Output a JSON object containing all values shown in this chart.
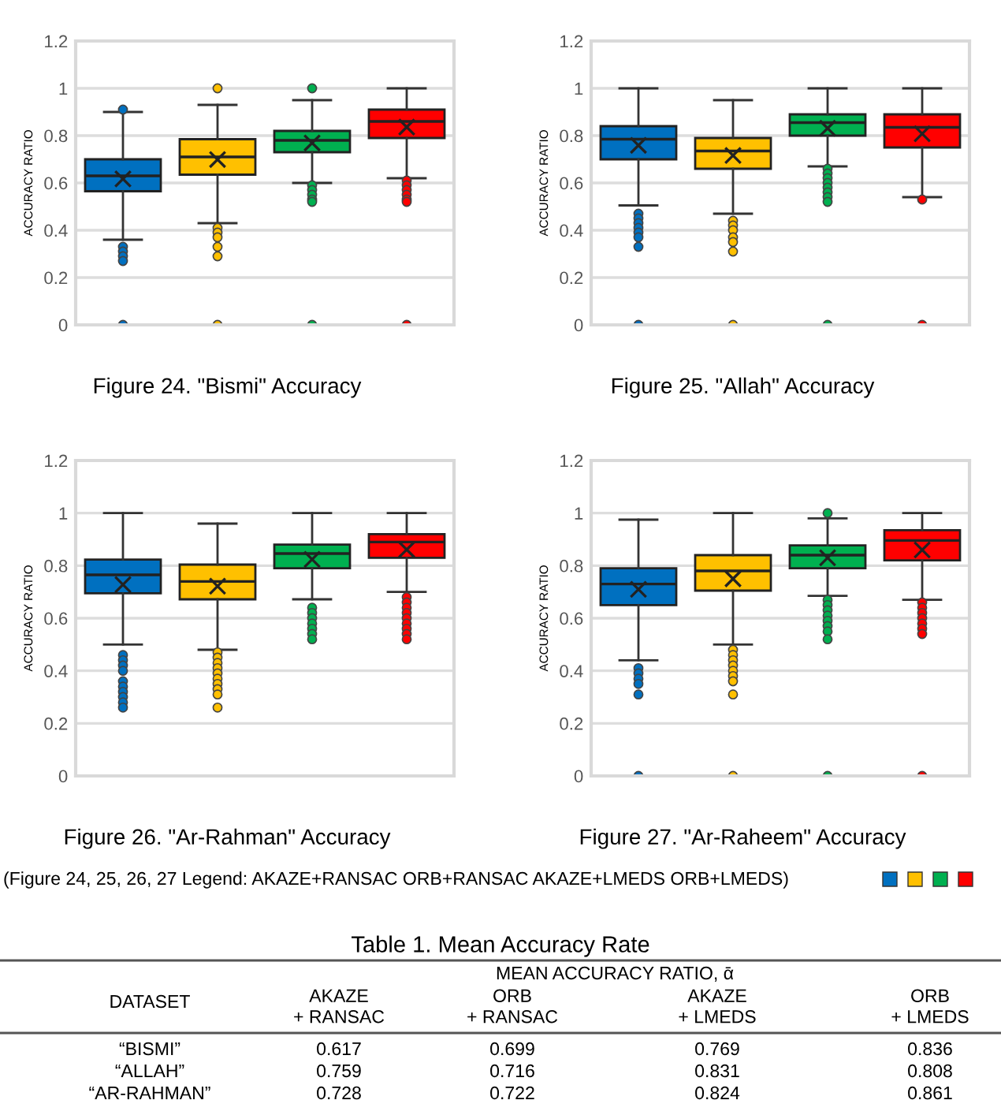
{
  "chart_data": [
    {
      "type": "box",
      "title": "Figure 24. \"Bismi\" Accuracy",
      "ylabel": "ACCURACY RATIO",
      "categories": [
        null,
        null,
        null,
        null
      ],
      "colors": [
        "#0070c0",
        "#ffc000",
        "#00b050",
        "#ff0000"
      ],
      "ylim": [
        0,
        1.2
      ],
      "yticks": [
        0,
        0.2,
        0.4,
        0.6,
        0.8,
        1,
        1.2
      ],
      "grid": "y",
      "tick_labels": "y",
      "boxes": [
        {
          "low": 0.36,
          "q1": 0.565,
          "median": 0.63,
          "q3": 0.7,
          "high": 0.9,
          "mean": 0.617,
          "outliers": [
            0.91,
            0.33,
            0.31,
            0.29,
            0.27,
            0
          ]
        },
        {
          "low": 0.43,
          "q1": 0.635,
          "median": 0.71,
          "q3": 0.785,
          "high": 0.93,
          "mean": 0.699,
          "outliers": [
            1.0,
            0.41,
            0.39,
            0.37,
            0.33,
            0.29,
            0
          ]
        },
        {
          "low": 0.6,
          "q1": 0.73,
          "median": 0.78,
          "q3": 0.82,
          "high": 0.95,
          "mean": 0.769,
          "outliers": [
            1.0,
            0.59,
            0.57,
            0.55,
            0.53,
            0.52,
            0
          ]
        },
        {
          "low": 0.62,
          "q1": 0.79,
          "median": 0.86,
          "q3": 0.91,
          "high": 1.0,
          "mean": 0.836,
          "outliers": [
            0.61,
            0.59,
            0.57,
            0.55,
            0.53,
            0.52,
            0
          ]
        }
      ]
    },
    {
      "type": "box",
      "title": "Figure 25. \"Allah\" Accuracy",
      "ylabel": "ACCURACY RATIO",
      "categories": [
        null,
        null,
        null,
        null
      ],
      "colors": [
        "#0070c0",
        "#ffc000",
        "#00b050",
        "#ff0000"
      ],
      "ylim": [
        0,
        1.2
      ],
      "yticks": [
        0,
        0.2,
        0.4,
        0.6,
        0.8,
        1,
        1.2
      ],
      "grid": "y",
      "tick_labels": "y",
      "boxes": [
        {
          "low": 0.505,
          "q1": 0.7,
          "median": 0.785,
          "q3": 0.84,
          "high": 1.0,
          "mean": 0.759,
          "outliers": [
            0.47,
            0.45,
            0.43,
            0.41,
            0.39,
            0.37,
            0.33,
            0
          ]
        },
        {
          "low": 0.47,
          "q1": 0.66,
          "median": 0.735,
          "q3": 0.79,
          "high": 0.95,
          "mean": 0.716,
          "outliers": [
            0.44,
            0.42,
            0.4,
            0.37,
            0.35,
            0.31,
            0
          ]
        },
        {
          "low": 0.67,
          "q1": 0.8,
          "median": 0.855,
          "q3": 0.89,
          "high": 1.0,
          "mean": 0.831,
          "outliers": [
            0.66,
            0.64,
            0.62,
            0.6,
            0.58,
            0.56,
            0.54,
            0.52,
            0
          ]
        },
        {
          "low": 0.54,
          "q1": 0.75,
          "median": 0.835,
          "q3": 0.89,
          "high": 1.0,
          "mean": 0.808,
          "outliers": [
            0.53,
            0
          ]
        }
      ]
    },
    {
      "type": "box",
      "title": "Figure 26. \"Ar-Rahman\" Accuracy",
      "ylabel": "ACCURACY RATIO",
      "categories": [
        null,
        null,
        null,
        null
      ],
      "colors": [
        "#0070c0",
        "#ffc000",
        "#00b050",
        "#ff0000"
      ],
      "ylim": [
        0,
        1.2
      ],
      "yticks": [
        0,
        0.2,
        0.4,
        0.6,
        0.8,
        1,
        1.2
      ],
      "grid": "y",
      "tick_labels": "y",
      "boxes": [
        {
          "low": 0.5,
          "q1": 0.695,
          "median": 0.765,
          "q3": 0.823,
          "high": 1.0,
          "mean": 0.728,
          "outliers": [
            0.46,
            0.44,
            0.42,
            0.4,
            0.36,
            0.34,
            0.32,
            0.3,
            0.28,
            0.26
          ]
        },
        {
          "low": 0.48,
          "q1": 0.672,
          "median": 0.74,
          "q3": 0.804,
          "high": 0.96,
          "mean": 0.722,
          "outliers": [
            0.47,
            0.45,
            0.43,
            0.41,
            0.39,
            0.37,
            0.35,
            0.33,
            0.31,
            0.26
          ]
        },
        {
          "low": 0.672,
          "q1": 0.79,
          "median": 0.846,
          "q3": 0.88,
          "high": 1.0,
          "mean": 0.824,
          "outliers": [
            0.64,
            0.62,
            0.6,
            0.58,
            0.56,
            0.54,
            0.52
          ]
        },
        {
          "low": 0.7,
          "q1": 0.83,
          "median": 0.89,
          "q3": 0.92,
          "high": 1.0,
          "mean": 0.861,
          "outliers": [
            0.68,
            0.66,
            0.64,
            0.62,
            0.6,
            0.58,
            0.56,
            0.54,
            0.52
          ]
        }
      ]
    },
    {
      "type": "box",
      "title": "Figure 27. \"Ar-Raheem\" Accuracy",
      "ylabel": "ACCURACY RATIO",
      "categories": [
        null,
        null,
        null,
        null
      ],
      "colors": [
        "#0070c0",
        "#ffc000",
        "#00b050",
        "#ff0000"
      ],
      "ylim": [
        0,
        1.2
      ],
      "yticks": [
        0,
        0.2,
        0.4,
        0.6,
        0.8,
        1,
        1.2
      ],
      "grid": "y",
      "tick_labels": "y",
      "boxes": [
        {
          "low": 0.44,
          "q1": 0.65,
          "median": 0.73,
          "q3": 0.79,
          "high": 0.975,
          "mean": 0.71,
          "outliers": [
            0.41,
            0.39,
            0.37,
            0.35,
            0.31,
            0
          ]
        },
        {
          "low": 0.5,
          "q1": 0.705,
          "median": 0.78,
          "q3": 0.84,
          "high": 1.0,
          "mean": 0.75,
          "outliers": [
            0.48,
            0.46,
            0.44,
            0.42,
            0.4,
            0.38,
            0.36,
            0.31,
            0
          ]
        },
        {
          "low": 0.685,
          "q1": 0.79,
          "median": 0.84,
          "q3": 0.877,
          "high": 0.98,
          "mean": 0.83,
          "outliers": [
            1.0,
            0.67,
            0.65,
            0.63,
            0.61,
            0.59,
            0.57,
            0.55,
            0.52,
            0
          ]
        },
        {
          "low": 0.67,
          "q1": 0.82,
          "median": 0.896,
          "q3": 0.935,
          "high": 1.0,
          "mean": 0.86,
          "outliers": [
            0.66,
            0.64,
            0.62,
            0.6,
            0.58,
            0.56,
            0.54,
            0
          ]
        }
      ]
    },
    {
      "type": "other",
      "title": "Table 1. Mean Accuracy Rate",
      "subtitle": "MEAN ACCURACY RATIO, ᾱ",
      "colors": [
        "#0070c0",
        "#ffc000",
        "#00b050",
        "#ff0000"
      ],
      "annotations": [
        "(Figure 24, 25, 26, 27 Legend: AKAZE+RANSAC ORB+RANSAC AKAZE+LMEDS ORB+LMEDS)",
        "DATASET",
        "AKAZE\n+ RANSAC",
        "ORB\n+ RANSAC",
        "AKAZE\n+ LMEDS",
        "ORB\n+ LMEDS",
        "“BISMI”",
        "0.617",
        "0.699",
        "0.769",
        "0.836",
        "“ALLAH”",
        "0.759",
        "0.716",
        "0.831",
        "0.808",
        "“AR-RAHMAN”",
        "0.728",
        "0.722",
        "0.824",
        "0.861"
      ]
    }
  ]
}
